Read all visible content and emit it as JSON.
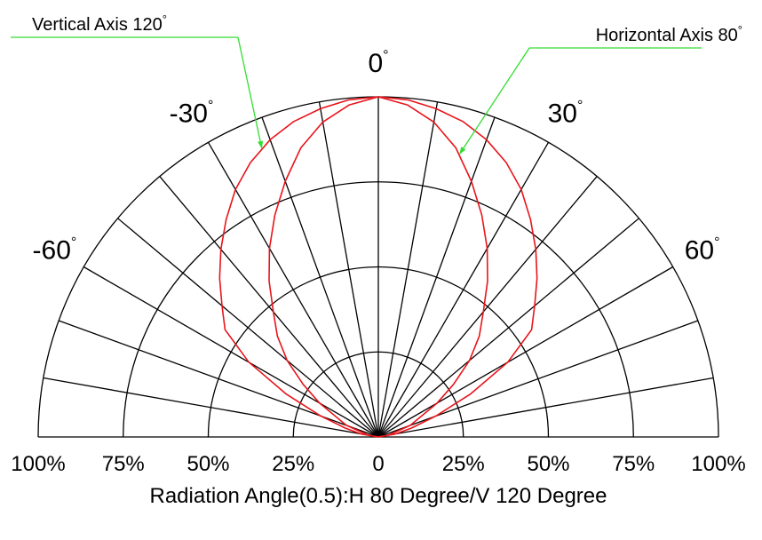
{
  "chart_data": {
    "type": "polar",
    "title": "",
    "caption": "Radiation Angle(0.5):H 80 Degree/V 120 Degree",
    "angle_range_deg": [
      -90,
      90
    ],
    "radial_range_pct": [
      0,
      100
    ],
    "radial_grid_pct": [
      25,
      50,
      75,
      100
    ],
    "spoke_step_deg": 10,
    "angle_labels": [
      {
        "angle": -60,
        "text": "-60",
        "degree_sign": "°"
      },
      {
        "angle": -30,
        "text": "-30",
        "degree_sign": "°"
      },
      {
        "angle": 0,
        "text": "0",
        "degree_sign": "°"
      },
      {
        "angle": 30,
        "text": "30",
        "degree_sign": "°"
      },
      {
        "angle": 60,
        "text": "60",
        "degree_sign": "°"
      }
    ],
    "radial_tick_labels": [
      "100%",
      "75%",
      "50%",
      "25%",
      "0",
      "25%",
      "50%",
      "75%",
      "100%"
    ],
    "annotations": [
      {
        "text": "Vertical Axis 120",
        "degree_sign": "°",
        "target_series": "vertical"
      },
      {
        "text": "Horizontal Axis 80",
        "degree_sign": "°",
        "target_series": "horizontal"
      }
    ],
    "series_style": {
      "color": "#e8141b",
      "annotation_line_color": "#33dd33",
      "grid_color": "#000000"
    },
    "series": [
      {
        "key": "vertical",
        "angles": [
          -90,
          -80,
          -75,
          -70,
          -65,
          -60,
          -55,
          -50,
          -45,
          -40,
          -35,
          -30,
          -25,
          -20,
          -15,
          -10,
          -5,
          0,
          5,
          10,
          15,
          20,
          25,
          30,
          35,
          40,
          45,
          50,
          55,
          60,
          65,
          70,
          75,
          80,
          90
        ],
        "values": [
          0,
          5,
          10,
          18,
          30,
          44,
          55,
          60,
          66,
          72,
          78,
          84,
          89,
          93,
          96,
          98,
          99.5,
          100,
          99.5,
          98,
          96,
          93,
          89,
          84,
          78,
          72,
          66,
          60,
          55,
          44,
          30,
          18,
          10,
          5,
          0
        ]
      },
      {
        "key": "horizontal",
        "angles": [
          -90,
          -80,
          -70,
          -60,
          -55,
          -50,
          -45,
          -40,
          -35,
          -30,
          -25,
          -20,
          -15,
          -10,
          -5,
          0,
          5,
          10,
          15,
          20,
          25,
          30,
          35,
          40,
          45,
          50,
          55,
          60,
          70,
          80,
          90
        ],
        "values": [
          0,
          3,
          10,
          20,
          27,
          35,
          42,
          48,
          56,
          64,
          72,
          80,
          88,
          94,
          98,
          100,
          98,
          94,
          88,
          80,
          72,
          64,
          56,
          48,
          42,
          35,
          27,
          20,
          10,
          3,
          0
        ]
      }
    ]
  }
}
